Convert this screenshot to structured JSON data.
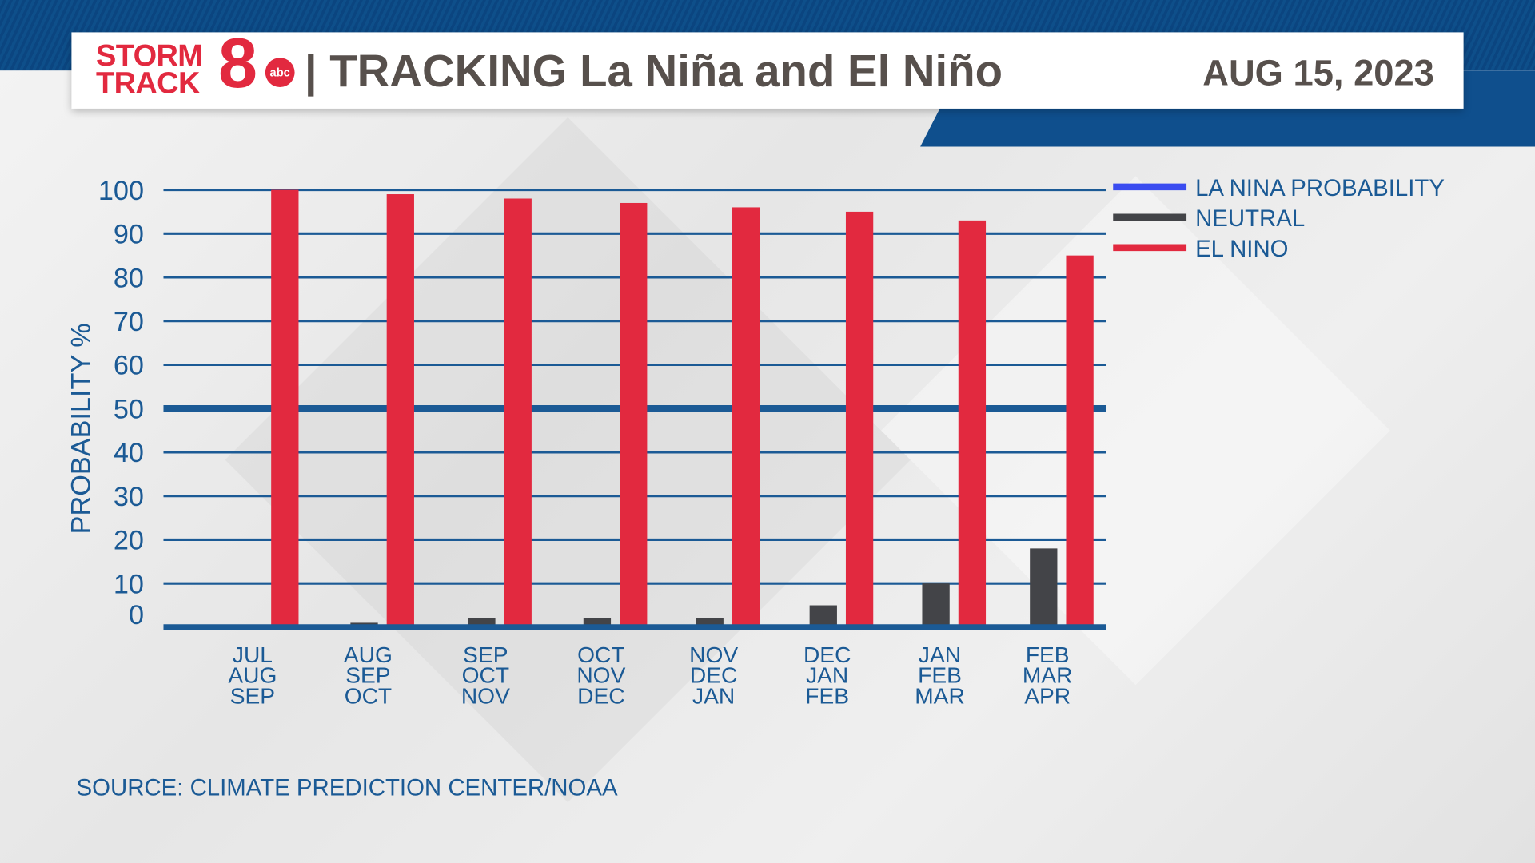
{
  "header": {
    "logo_line1": "STORM",
    "logo_line2": "TRACK",
    "logo_number": "8",
    "logo_network": "abc",
    "title": "| TRACKING La Niña and El Niño",
    "date": "AUG 15, 2023"
  },
  "source": "SOURCE: CLIMATE PREDICTION CENTER/NOAA",
  "colors": {
    "la_nina": "#3a4cf0",
    "neutral": "#434448",
    "el_nino": "#e2293f",
    "grid": "#1b5a95",
    "axis_text": "#1b5a95"
  },
  "chart_data": {
    "type": "bar",
    "ylabel": "PROBABILITY %",
    "ylim": [
      0,
      100
    ],
    "yticks": [
      0,
      10,
      20,
      30,
      40,
      50,
      60,
      70,
      80,
      90,
      100
    ],
    "grid": true,
    "highlight_line": 50,
    "legend_position": "top-right",
    "categories": [
      [
        "JUL",
        "AUG",
        "SEP"
      ],
      [
        "AUG",
        "SEP",
        "OCT"
      ],
      [
        "SEP",
        "OCT",
        "NOV"
      ],
      [
        "OCT",
        "NOV",
        "DEC"
      ],
      [
        "NOV",
        "DEC",
        "JAN"
      ],
      [
        "DEC",
        "JAN",
        "FEB"
      ],
      [
        "JAN",
        "FEB",
        "MAR"
      ],
      [
        "FEB",
        "MAR",
        "APR"
      ]
    ],
    "series": [
      {
        "name": "LA NINA PROBABILITY",
        "values": [
          0,
          0,
          0,
          0,
          0,
          0,
          0,
          0
        ]
      },
      {
        "name": "NEUTRAL",
        "values": [
          0,
          1,
          2,
          2,
          2,
          5,
          10,
          18
        ]
      },
      {
        "name": "EL NINO",
        "values": [
          100,
          99,
          98,
          97,
          96,
          95,
          93,
          85
        ]
      }
    ]
  }
}
